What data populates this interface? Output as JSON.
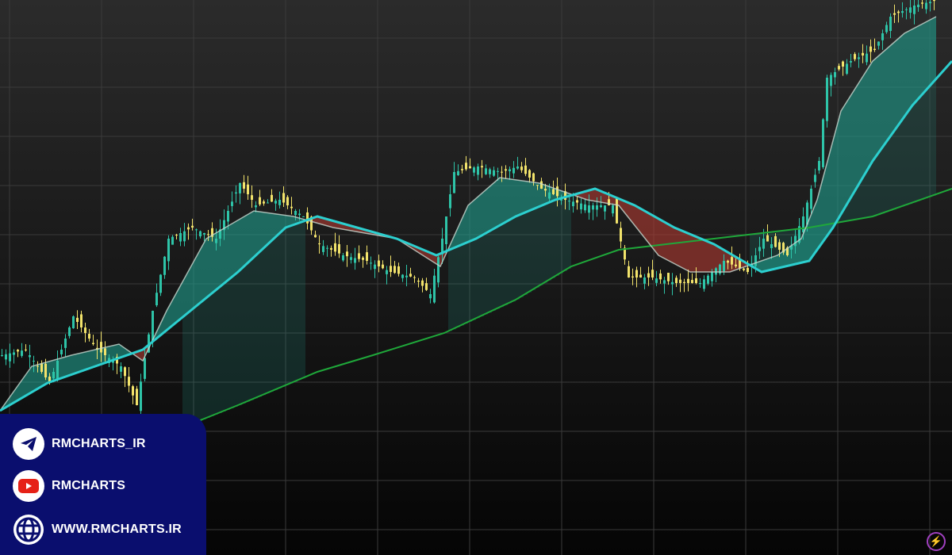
{
  "chart_data": {
    "type": "line",
    "title": "",
    "xlabel": "",
    "ylabel": "",
    "ylim": [
      0,
      100
    ],
    "xlim": [
      0,
      240
    ],
    "grid": true,
    "style": "candlestick with moving-average ribbon",
    "colors": {
      "candle_up": "#2ec4a8",
      "candle_down": "#f2e36b",
      "fast_ma": "#c8d8d0",
      "slow_ma": "#2ccfcf",
      "long_ma": "#1fa83a",
      "ribbon_bull": "#1f9e8e",
      "ribbon_bear": "#b03a32"
    },
    "series": [
      {
        "key": "price",
        "points": [
          [
            0,
            36
          ],
          [
            6,
            37
          ],
          [
            12,
            31
          ],
          [
            18,
            43
          ],
          [
            24,
            37
          ],
          [
            30,
            34
          ],
          [
            34,
            27
          ],
          [
            38,
            44
          ],
          [
            42,
            57
          ],
          [
            48,
            59
          ],
          [
            54,
            57
          ],
          [
            60,
            67
          ],
          [
            64,
            63
          ],
          [
            70,
            64
          ],
          [
            76,
            61
          ],
          [
            80,
            56
          ],
          [
            86,
            54
          ],
          [
            92,
            53
          ],
          [
            98,
            51
          ],
          [
            104,
            50
          ],
          [
            108,
            47
          ],
          [
            111,
            57
          ],
          [
            114,
            69
          ],
          [
            120,
            70
          ],
          [
            126,
            69
          ],
          [
            130,
            70
          ],
          [
            136,
            66
          ],
          [
            142,
            64
          ],
          [
            148,
            63
          ],
          [
            154,
            63
          ],
          [
            158,
            50
          ],
          [
            164,
            50
          ],
          [
            170,
            49
          ],
          [
            176,
            49
          ],
          [
            182,
            53
          ],
          [
            188,
            51
          ],
          [
            192,
            57
          ],
          [
            198,
            54
          ],
          [
            202,
            61
          ],
          [
            206,
            71
          ],
          [
            208,
            86
          ],
          [
            214,
            89
          ],
          [
            220,
            91
          ],
          [
            224,
            97
          ],
          [
            230,
            99
          ],
          [
            236,
            100
          ]
        ]
      },
      {
        "key": "fast_ma",
        "points": [
          [
            0,
            26
          ],
          [
            8,
            34
          ],
          [
            18,
            36
          ],
          [
            30,
            38
          ],
          [
            36,
            35
          ],
          [
            42,
            44
          ],
          [
            52,
            57
          ],
          [
            64,
            62
          ],
          [
            74,
            61
          ],
          [
            84,
            59
          ],
          [
            100,
            57
          ],
          [
            111,
            52
          ],
          [
            118,
            63
          ],
          [
            126,
            68
          ],
          [
            136,
            67
          ],
          [
            148,
            64
          ],
          [
            156,
            63
          ],
          [
            166,
            54
          ],
          [
            174,
            51
          ],
          [
            184,
            51
          ],
          [
            196,
            54
          ],
          [
            202,
            57
          ],
          [
            206,
            64
          ],
          [
            212,
            80
          ],
          [
            220,
            89
          ],
          [
            228,
            94
          ],
          [
            236,
            97
          ]
        ]
      },
      {
        "key": "slow_ma",
        "points": [
          [
            0,
            26
          ],
          [
            12,
            31
          ],
          [
            24,
            34
          ],
          [
            36,
            37
          ],
          [
            48,
            44
          ],
          [
            60,
            51
          ],
          [
            72,
            59
          ],
          [
            80,
            61
          ],
          [
            90,
            59
          ],
          [
            100,
            57
          ],
          [
            110,
            54
          ],
          [
            120,
            57
          ],
          [
            130,
            61
          ],
          [
            140,
            64
          ],
          [
            150,
            66
          ],
          [
            160,
            63
          ],
          [
            170,
            59
          ],
          [
            180,
            56
          ],
          [
            192,
            51
          ],
          [
            204,
            53
          ],
          [
            210,
            59
          ],
          [
            220,
            71
          ],
          [
            230,
            81
          ],
          [
            240,
            89
          ]
        ]
      },
      {
        "key": "long_ma",
        "points": [
          [
            46,
            23
          ],
          [
            60,
            27
          ],
          [
            80,
            33
          ],
          [
            94,
            36
          ],
          [
            112,
            40
          ],
          [
            130,
            46
          ],
          [
            144,
            52
          ],
          [
            156,
            55
          ],
          [
            180,
            57
          ],
          [
            192,
            58
          ],
          [
            204,
            59
          ],
          [
            220,
            61
          ],
          [
            240,
            66
          ]
        ]
      }
    ]
  },
  "branding": {
    "telegram": {
      "icon": "telegram-icon",
      "label": "RMCHARTS_IR"
    },
    "youtube": {
      "icon": "youtube-icon",
      "label": "RMCHARTS"
    },
    "website": {
      "icon": "globe-icon",
      "label": "WWW.RMCHARTS.IR"
    },
    "panel_color": "#0a0e6e",
    "corner_icon": "lightning-bolt-icon"
  }
}
